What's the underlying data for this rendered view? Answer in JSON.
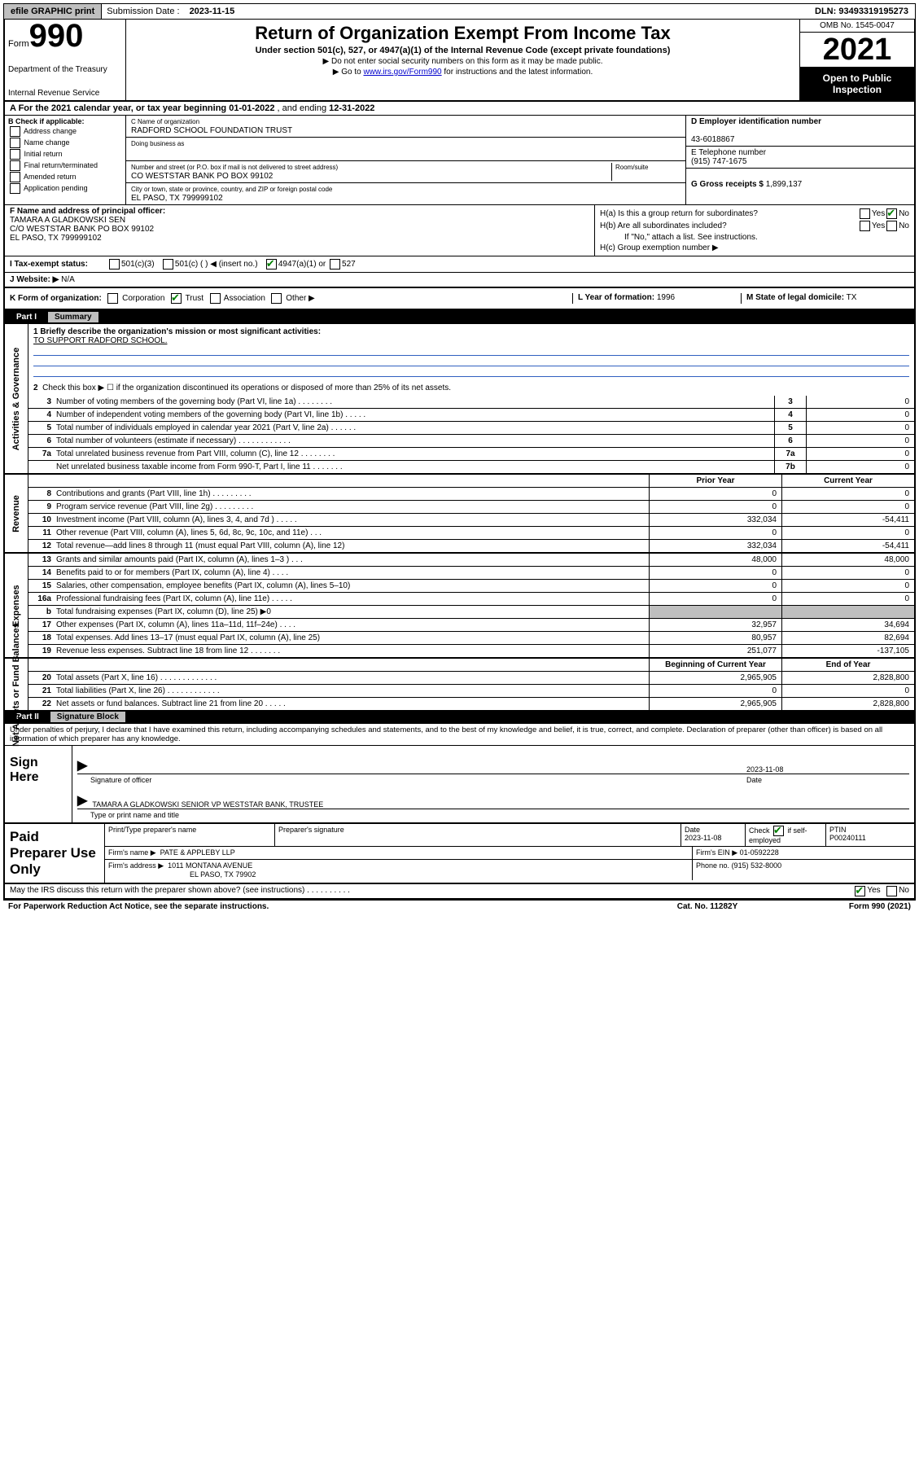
{
  "topbar": {
    "efile": "efile GRAPHIC print",
    "sub_label": "Submission Date :",
    "sub_date": "2023-11-15",
    "dln": "DLN: 93493319195273"
  },
  "header": {
    "form_prefix": "Form",
    "form_number": "990",
    "dept1": "Department of the Treasury",
    "dept2": "Internal Revenue Service",
    "title": "Return of Organization Exempt From Income Tax",
    "subtitle": "Under section 501(c), 527, or 4947(a)(1) of the Internal Revenue Code (except private foundations)",
    "note1": "▶ Do not enter social security numbers on this form as it may be made public.",
    "note2_pre": "▶ Go to ",
    "note2_link": "www.irs.gov/Form990",
    "note2_post": " for instructions and the latest information.",
    "omb": "OMB No. 1545-0047",
    "year": "2021",
    "inspection1": "Open to Public",
    "inspection2": "Inspection"
  },
  "period": {
    "text_a": "A For the 2021 calendar year, or tax year beginning ",
    "begin": "01-01-2022",
    "text_mid": " , and ending ",
    "end": "12-31-2022"
  },
  "sectionB": {
    "label": "B Check if applicable:",
    "opts": [
      "Address change",
      "Name change",
      "Initial return",
      "Final return/terminated",
      "Amended return",
      "Application pending"
    ]
  },
  "sectionC": {
    "name_label": "C Name of organization",
    "name": "RADFORD SCHOOL FOUNDATION TRUST",
    "dba_label": "Doing business as",
    "dba": "",
    "addr_label": "Number and street (or P.O. box if mail is not delivered to street address)",
    "room_label": "Room/suite",
    "addr": "CO WESTSTAR BANK PO BOX 99102",
    "city_label": "City or town, state or province, country, and ZIP or foreign postal code",
    "city": "EL PASO, TX  799999102"
  },
  "sectionD": {
    "label": "D Employer identification number",
    "ein": "43-6018867"
  },
  "sectionE": {
    "label": "E Telephone number",
    "phone": "(915) 747-1675"
  },
  "sectionG": {
    "label": "G Gross receipts $",
    "amount": "1,899,137"
  },
  "sectionF": {
    "label": "F Name and address of principal officer:",
    "line1": "TAMARA A GLADKOWSKI SEN",
    "line2": "C/O WESTSTAR BANK PO BOX 99102",
    "line3": "EL PASO, TX  799999102"
  },
  "sectionH": {
    "ha": "H(a)  Is this a group return for subordinates?",
    "hb": "H(b)  Are all subordinates included?",
    "hb_note": "If \"No,\" attach a list. See instructions.",
    "hc": "H(c)  Group exemption number ▶",
    "yes": "Yes",
    "no": "No"
  },
  "sectionI": {
    "label": "I  Tax-exempt status:",
    "o1": "501(c)(3)",
    "o2": "501(c) (   ) ◀ (insert no.)",
    "o3": "4947(a)(1) or",
    "o4": "527"
  },
  "sectionJ": {
    "label": "J  Website: ▶",
    "val": "N/A"
  },
  "sectionK": {
    "label": "K Form of organization:",
    "o1": "Corporation",
    "o2": "Trust",
    "o3": "Association",
    "o4": "Other ▶"
  },
  "sectionL": {
    "label": "L Year of formation:",
    "val": "1996"
  },
  "sectionM": {
    "label": "M State of legal domicile:",
    "val": "TX"
  },
  "part1": {
    "tag": "Part I",
    "title": "Summary",
    "q1_label": "1  Briefly describe the organization's mission or most significant activities:",
    "q1_val": "TO SUPPORT RADFORD SCHOOL.",
    "q2": "Check this box ▶ ☐  if the organization discontinued its operations or disposed of more than 25% of its net assets.",
    "vert1": "Activities & Governance",
    "vert2": "Revenue",
    "vert3": "Expenses",
    "vert4": "Net Assets or Fund Balances",
    "rows_gov": [
      {
        "n": "3",
        "d": "Number of voting members of the governing body (Part VI, line 1a)  .   .   .   .   .   .   .   .",
        "box": "3",
        "v": "0"
      },
      {
        "n": "4",
        "d": "Number of independent voting members of the governing body (Part VI, line 1b)  .   .   .   .   .",
        "box": "4",
        "v": "0"
      },
      {
        "n": "5",
        "d": "Total number of individuals employed in calendar year 2021 (Part V, line 2a)  .   .   .   .   .   .",
        "box": "5",
        "v": "0"
      },
      {
        "n": "6",
        "d": "Total number of volunteers (estimate if necessary)  .   .   .   .   .   .   .   .   .   .   .   .",
        "box": "6",
        "v": "0"
      },
      {
        "n": "7a",
        "d": "Total unrelated business revenue from Part VIII, column (C), line 12  .   .   .   .   .   .   .   .",
        "box": "7a",
        "v": "0"
      },
      {
        "n": "",
        "d": "Net unrelated business taxable income from Form 990-T, Part I, line 11  .   .   .   .   .   .   .",
        "box": "7b",
        "v": "0"
      }
    ],
    "hdr_prior": "Prior Year",
    "hdr_curr": "Current Year",
    "rows_rev": [
      {
        "n": "8",
        "d": "Contributions and grants (Part VIII, line 1h)  .   .   .   .   .   .   .   .   .",
        "p": "0",
        "c": "0"
      },
      {
        "n": "9",
        "d": "Program service revenue (Part VIII, line 2g)  .   .   .   .   .   .   .   .   .",
        "p": "0",
        "c": "0"
      },
      {
        "n": "10",
        "d": "Investment income (Part VIII, column (A), lines 3, 4, and 7d )  .   .   .   .   .",
        "p": "332,034",
        "c": "-54,411"
      },
      {
        "n": "11",
        "d": "Other revenue (Part VIII, column (A), lines 5, 6d, 8c, 9c, 10c, and 11e)  .   .   .",
        "p": "0",
        "c": "0"
      },
      {
        "n": "12",
        "d": "Total revenue—add lines 8 through 11 (must equal Part VIII, column (A), line 12)",
        "p": "332,034",
        "c": "-54,411"
      }
    ],
    "rows_exp": [
      {
        "n": "13",
        "d": "Grants and similar amounts paid (Part IX, column (A), lines 1–3 )  .   .   .",
        "p": "48,000",
        "c": "48,000"
      },
      {
        "n": "14",
        "d": "Benefits paid to or for members (Part IX, column (A), line 4)  .   .   .   .",
        "p": "0",
        "c": "0"
      },
      {
        "n": "15",
        "d": "Salaries, other compensation, employee benefits (Part IX, column (A), lines 5–10)",
        "p": "0",
        "c": "0"
      },
      {
        "n": "16a",
        "d": "Professional fundraising fees (Part IX, column (A), line 11e)  .   .   .   .   .",
        "p": "0",
        "c": "0"
      },
      {
        "n": "b",
        "d": "Total fundraising expenses (Part IX, column (D), line 25) ▶0",
        "p": "",
        "c": "",
        "shaded": true
      },
      {
        "n": "17",
        "d": "Other expenses (Part IX, column (A), lines 11a–11d, 11f–24e)  .   .   .   .",
        "p": "32,957",
        "c": "34,694"
      },
      {
        "n": "18",
        "d": "Total expenses. Add lines 13–17 (must equal Part IX, column (A), line 25)",
        "p": "80,957",
        "c": "82,694"
      },
      {
        "n": "19",
        "d": "Revenue less expenses. Subtract line 18 from line 12  .   .   .   .   .   .   .",
        "p": "251,077",
        "c": "-137,105"
      }
    ],
    "hdr_begin": "Beginning of Current Year",
    "hdr_end": "End of Year",
    "rows_net": [
      {
        "n": "20",
        "d": "Total assets (Part X, line 16)  .   .   .   .   .   .   .   .   .   .   .   .   .",
        "p": "2,965,905",
        "c": "2,828,800"
      },
      {
        "n": "21",
        "d": "Total liabilities (Part X, line 26)  .   .   .   .   .   .   .   .   .   .   .   .",
        "p": "0",
        "c": "0"
      },
      {
        "n": "22",
        "d": "Net assets or fund balances. Subtract line 21 from line 20  .   .   .   .   .",
        "p": "2,965,905",
        "c": "2,828,800"
      }
    ]
  },
  "part2": {
    "tag": "Part II",
    "title": "Signature Block",
    "penalty": "Under penalties of perjury, I declare that I have examined this return, including accompanying schedules and statements, and to the best of my knowledge and belief, it is true, correct, and complete. Declaration of preparer (other than officer) is based on all information of which preparer has any knowledge.",
    "sign_here": "Sign Here",
    "sig_date": "2023-11-08",
    "sig_officer_lbl": "Signature of officer",
    "date_lbl": "Date",
    "officer_name": "TAMARA A GLADKOWSKI SENIOR VP  WESTSTAR BANK, TRUSTEE",
    "officer_name_lbl": "Type or print name and title"
  },
  "paid": {
    "title": "Paid Preparer Use Only",
    "h1": "Print/Type preparer's name",
    "h2": "Preparer's signature",
    "h3": "Date",
    "h3v": "2023-11-08",
    "h4a": "Check",
    "h4b": "if self-employed",
    "h5": "PTIN",
    "h5v": "P00240111",
    "firm_name_lbl": "Firm's name    ▶",
    "firm_name": "PATE & APPLEBY LLP",
    "firm_ein_lbl": "Firm's EIN ▶",
    "firm_ein": "01-0592228",
    "firm_addr_lbl": "Firm's address ▶",
    "firm_addr1": "1011 MONTANA AVENUE",
    "firm_addr2": "EL PASO, TX  79902",
    "phone_lbl": "Phone no.",
    "phone": "(915) 532-8000"
  },
  "footer": {
    "discuss": "May the IRS discuss this return with the preparer shown above? (see instructions)  .   .   .   .   .   .   .   .   .   .",
    "yes": "Yes",
    "no": "No",
    "pra": "For Paperwork Reduction Act Notice, see the separate instructions.",
    "cat": "Cat. No. 11282Y",
    "form": "Form 990 (2021)"
  }
}
